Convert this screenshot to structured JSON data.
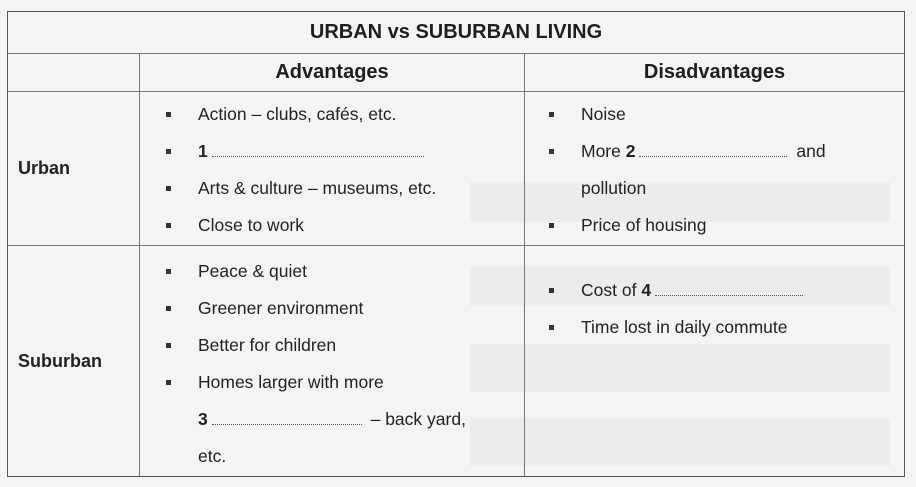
{
  "table": {
    "title": "URBAN vs SUBURBAN LIVING",
    "col_advantages": "Advantages",
    "col_disadvantages": "Disadvantages"
  },
  "urban": {
    "label": "Urban",
    "adv": {
      "item1": "Action – clubs, cafés, etc.",
      "item2_num": "1",
      "item3": "Arts & culture – museums, etc.",
      "item4": "Close to work"
    },
    "dis": {
      "item1": "Noise",
      "item2_pre": "More",
      "item2_num": "2",
      "item2_post": "and",
      "item2_cont": "pollution",
      "item3": "Price of housing"
    }
  },
  "suburban": {
    "label": "Suburban",
    "adv": {
      "item1": "Peace & quiet",
      "item2": "Greener environment",
      "item3": "Better for children",
      "item4": "Homes larger with more",
      "item4_num": "3",
      "item4_post": "– back yard,",
      "item4_cont": "etc."
    },
    "dis": {
      "item1_pre": "Cost of",
      "item1_num": "4",
      "item2": "Time lost in daily commute"
    }
  }
}
